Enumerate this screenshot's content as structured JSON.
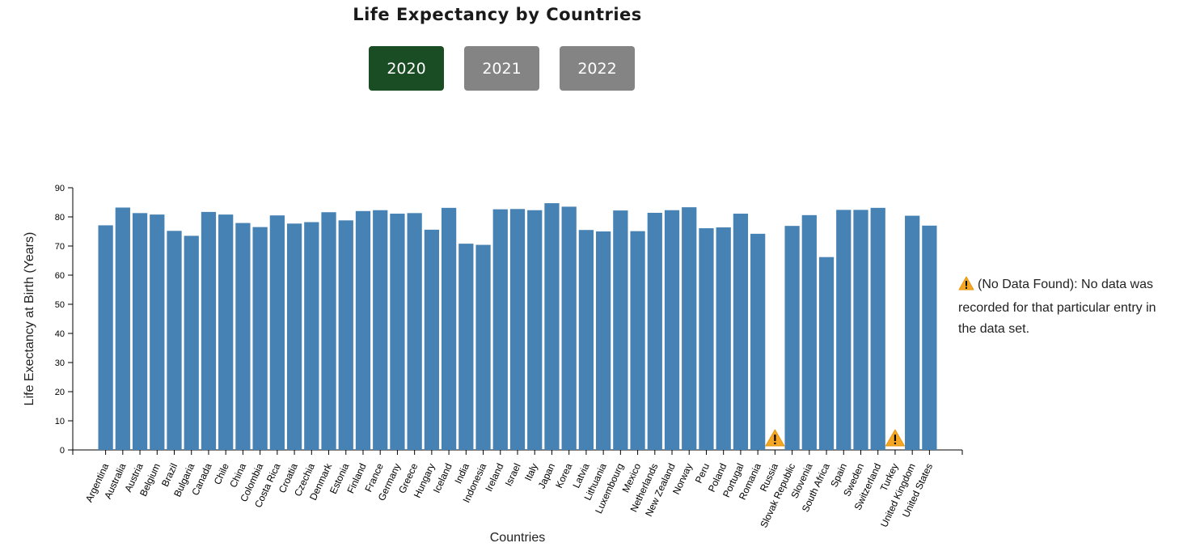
{
  "header": {
    "title": "Life Expectancy by Countries"
  },
  "year_buttons": [
    {
      "label": "2020",
      "active": true
    },
    {
      "label": "2021",
      "active": false
    },
    {
      "label": "2022",
      "active": false
    }
  ],
  "colors": {
    "active_button": "#1a4d23",
    "inactive_button": "#848484",
    "bar": "#4682b4",
    "warning_fill": "#f5a623",
    "warning_text": "#000000"
  },
  "legend_note": {
    "icon": "warning-icon",
    "text": "(No Data Found): No data was recorded for that particular entry in the data set."
  },
  "chart_data": {
    "type": "bar",
    "title": "Life Expectancy by Countries",
    "xlabel": "Countries",
    "ylabel": "Life Exectancy at Birth (Years)",
    "ylim": [
      0,
      90
    ],
    "yticks": [
      0,
      10,
      20,
      30,
      40,
      50,
      60,
      70,
      80,
      90
    ],
    "grid": false,
    "missing_marker": "warning-icon",
    "categories": [
      "Argentina",
      "Australia",
      "Austria",
      "Belgium",
      "Brazil",
      "Bulgaria",
      "Canada",
      "Chile",
      "China",
      "Colombia",
      "Costa Rica",
      "Croatia",
      "Czechia",
      "Denmark",
      "Estonia",
      "Finland",
      "France",
      "Germany",
      "Greece",
      "Hungary",
      "Iceland",
      "India",
      "Indonesia",
      "Ireland",
      "Israel",
      "Italy",
      "Japan",
      "Korea",
      "Latvia",
      "Lithuania",
      "Luxembourg",
      "Mexico",
      "Netherlands",
      "New Zealand",
      "Norway",
      "Peru",
      "Poland",
      "Portugal",
      "Romania",
      "Russia",
      "Slovak Republic",
      "Slovenia",
      "South Africa",
      "Spain",
      "Sweden",
      "Switzerland",
      "Turkey",
      "United Kingdom",
      "United States"
    ],
    "values": [
      77.1,
      83.2,
      81.3,
      80.8,
      75.2,
      73.5,
      81.7,
      80.8,
      77.9,
      76.5,
      80.5,
      77.7,
      78.2,
      81.6,
      78.8,
      82.0,
      82.3,
      81.1,
      81.3,
      75.6,
      83.1,
      70.8,
      70.4,
      82.6,
      82.7,
      82.3,
      84.7,
      83.5,
      75.5,
      75.0,
      82.2,
      75.1,
      81.4,
      82.3,
      83.3,
      76.1,
      76.4,
      81.1,
      74.2,
      null,
      76.9,
      80.6,
      66.2,
      82.4,
      82.4,
      83.1,
      null,
      80.4,
      77.0
    ]
  }
}
